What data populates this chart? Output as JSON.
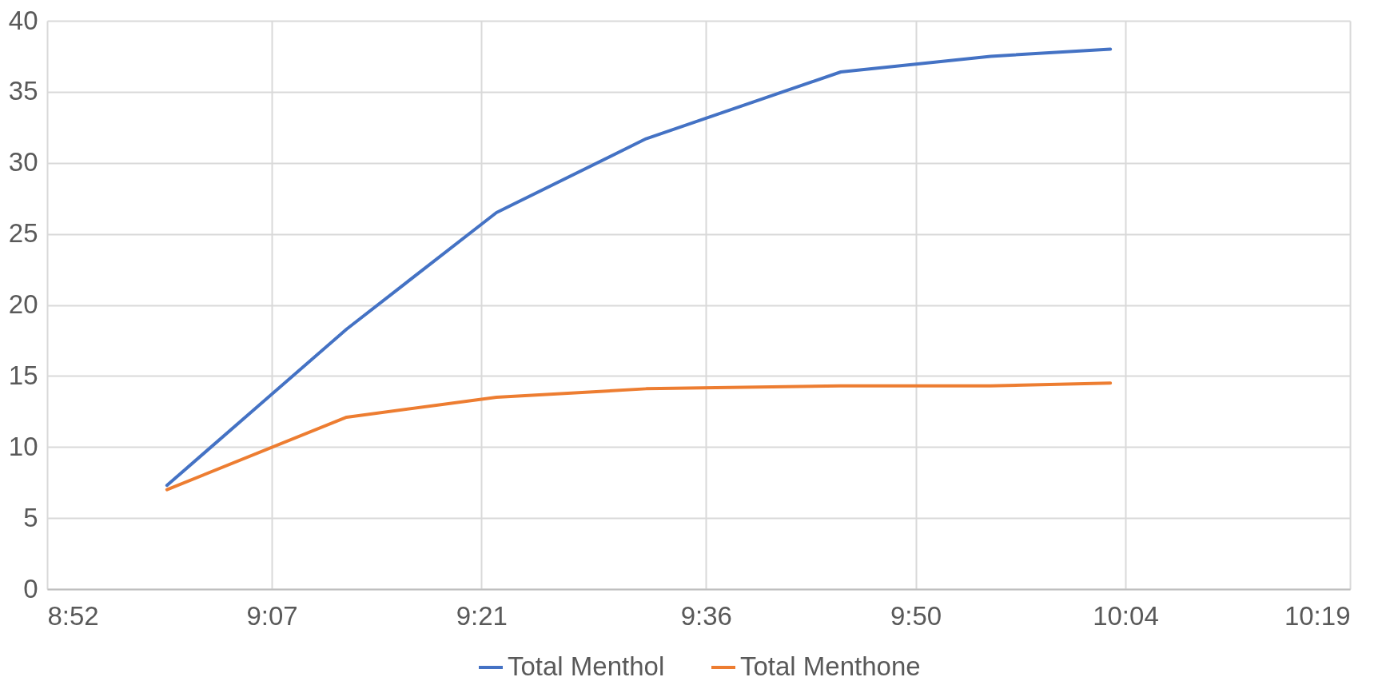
{
  "chart_data": {
    "type": "line",
    "x": [
      9.0,
      9.2,
      9.3667,
      9.5333,
      9.75,
      9.9167,
      10.05
    ],
    "series": [
      {
        "name": "Total Menthol",
        "color": "#4472c4",
        "values": [
          7.3,
          18.3,
          26.5,
          31.7,
          36.4,
          37.5,
          38.0
        ]
      },
      {
        "name": "Total Menthone",
        "color": "#ed7d31",
        "values": [
          7.0,
          12.1,
          13.5,
          14.1,
          14.3,
          14.3,
          14.5
        ]
      }
    ],
    "xlim": [
      8.8667,
      10.3167
    ],
    "xticks": [
      {
        "value": 8.8667,
        "label": "8:52"
      },
      {
        "value": 9.1167,
        "label": "9:07"
      },
      {
        "value": 9.35,
        "label": "9:21"
      },
      {
        "value": 9.6,
        "label": "9:36"
      },
      {
        "value": 9.8333,
        "label": "9:50"
      },
      {
        "value": 10.0667,
        "label": "10:04"
      },
      {
        "value": 10.3167,
        "label": "10:19"
      }
    ],
    "ylim": [
      0,
      40
    ],
    "yticks": [
      0,
      5,
      10,
      15,
      20,
      25,
      30,
      35,
      40
    ],
    "grid": true,
    "legend": "bottom",
    "marker": "none",
    "line_style": "solid"
  }
}
